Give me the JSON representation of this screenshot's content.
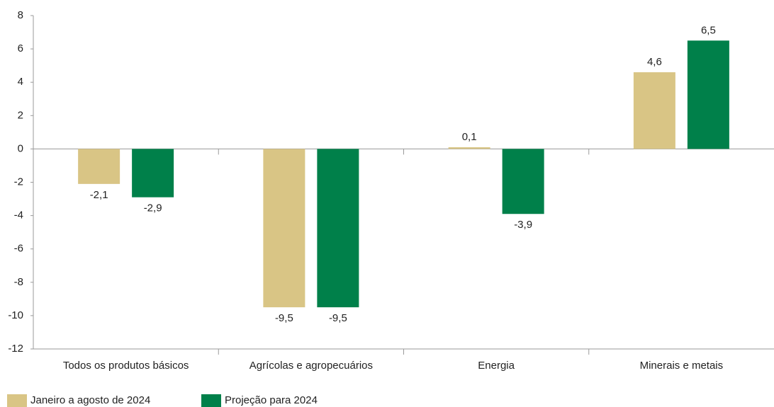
{
  "chart_data": {
    "type": "bar",
    "categories": [
      "Todos os produtos básicos",
      "Agrícolas e agropecuários",
      "Energia",
      "Minerais e metais"
    ],
    "series": [
      {
        "name": "Janeiro a agosto de 2024",
        "color": "#d9c585",
        "values": [
          -2.1,
          -9.5,
          0.1,
          4.6
        ],
        "value_labels": [
          "-2,1",
          "-9,5",
          "0,1",
          "4,6"
        ]
      },
      {
        "name": "Projeção para 2024",
        "color": "#00804a",
        "values": [
          -2.9,
          -9.5,
          -3.9,
          6.5
        ],
        "value_labels": [
          "-2,9",
          "-9,5",
          "-3,9",
          "6,5"
        ]
      }
    ],
    "ylim": [
      -12,
      8
    ],
    "yticks": [
      -12,
      -10,
      -8,
      -6,
      -4,
      -2,
      0,
      2,
      4,
      6,
      8
    ]
  }
}
